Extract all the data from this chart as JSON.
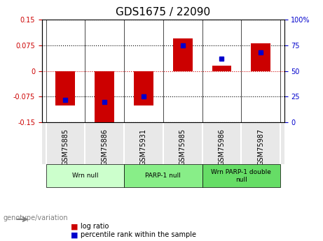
{
  "title": "GDS1675 / 22090",
  "samples": [
    "GSM75885",
    "GSM75886",
    "GSM75931",
    "GSM75985",
    "GSM75986",
    "GSM75987"
  ],
  "log_ratios": [
    -0.1,
    -0.155,
    -0.1,
    0.095,
    0.015,
    0.08
  ],
  "percentile_ranks": [
    22,
    20,
    25,
    75,
    62,
    68
  ],
  "ylim_left": [
    -0.15,
    0.15
  ],
  "ylim_right": [
    0,
    100
  ],
  "yticks_left": [
    -0.15,
    -0.075,
    0,
    0.075,
    0.15
  ],
  "yticks_right": [
    0,
    25,
    50,
    75,
    100
  ],
  "ytick_labels_left": [
    "-0.15",
    "-0.075",
    "0",
    "0.075",
    "0.15"
  ],
  "ytick_labels_right": [
    "0",
    "25",
    "50",
    "75",
    "100%"
  ],
  "bar_color": "#cc0000",
  "dot_color": "#0000cc",
  "groups": [
    {
      "label": "Wrn null",
      "samples": [
        "GSM75885",
        "GSM75886"
      ],
      "color": "#ccffcc"
    },
    {
      "label": "PARP-1 null",
      "samples": [
        "GSM75931",
        "GSM75985"
      ],
      "color": "#88ee88"
    },
    {
      "label": "Wrn PARP-1 double\nnull",
      "samples": [
        "GSM75986",
        "GSM75987"
      ],
      "color": "#66dd66"
    }
  ],
  "group_bg_color": "#e8e8e8",
  "legend_items": [
    {
      "label": "log ratio",
      "color": "#cc0000"
    },
    {
      "label": "percentile rank within the sample",
      "color": "#0000cc"
    }
  ],
  "genotype_label": "genotype/variation",
  "hline_color": "#cc0000",
  "dotline_color": "#aaaaaa",
  "bar_width": 0.5
}
